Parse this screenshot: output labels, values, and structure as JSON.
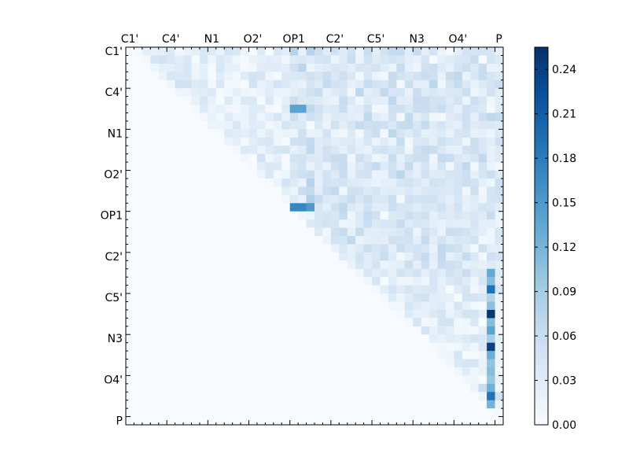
{
  "chart_data": {
    "type": "heatmap",
    "title": "",
    "xlabel": "",
    "ylabel": "",
    "grid_size": 46,
    "cell_unit": "atom pair",
    "x_tick_labels": [
      "C1'",
      "C4'",
      "N1",
      "O2'",
      "OP1",
      "C2'",
      "C5'",
      "N3",
      "O4'",
      "P"
    ],
    "y_tick_labels": [
      "C1'",
      "C4'",
      "N1",
      "O2'",
      "OP1",
      "C2'",
      "C5'",
      "N3",
      "O4'",
      "P"
    ],
    "matrix_shape": "upper-triangular",
    "colormap": "Blues",
    "colorbar": {
      "min": 0.0,
      "max": 0.255,
      "ticks": [
        "0.00",
        "0.03",
        "0.06",
        "0.09",
        "0.12",
        "0.15",
        "0.18",
        "0.21",
        "0.24"
      ]
    },
    "notable_cells": [
      {
        "row": 32,
        "col": 44,
        "value": 0.25
      },
      {
        "row": 36,
        "col": 44,
        "value": 0.24
      },
      {
        "row": 37,
        "col": 46,
        "value": 0.21
      },
      {
        "row": 42,
        "col": 44,
        "value": 0.19
      },
      {
        "row": 29,
        "col": 44,
        "value": 0.19
      },
      {
        "row": 30,
        "col": 46,
        "value": 0.18
      },
      {
        "row": 19,
        "col": 20,
        "value": 0.17
      },
      {
        "row": 19,
        "col": 21,
        "value": 0.17
      },
      {
        "row": 19,
        "col": 22,
        "value": 0.15
      },
      {
        "row": 7,
        "col": 20,
        "value": 0.14
      },
      {
        "row": 7,
        "col": 21,
        "value": 0.14
      }
    ]
  }
}
